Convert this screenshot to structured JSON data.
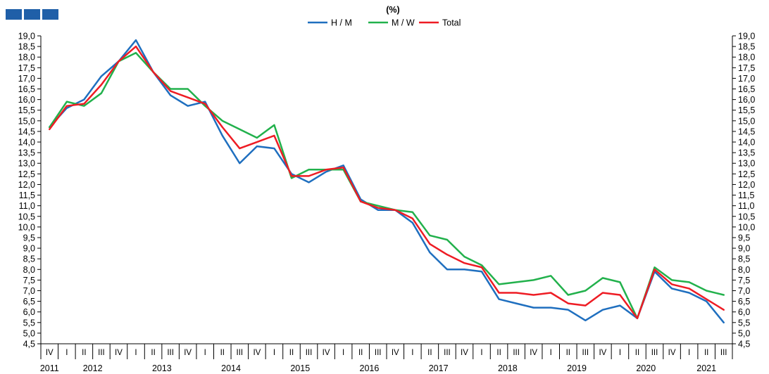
{
  "header": {
    "unit_title": "(%)"
  },
  "colors": {
    "logo": "#1f5fa8",
    "H / M": "#1f6fbf",
    "M / W": "#22b14c",
    "Total": "#ee1c24",
    "axis": "#000000"
  },
  "chart_data": {
    "type": "line",
    "title": "(%)",
    "xlabel": "",
    "ylabel": "",
    "ylim": [
      4.5,
      19.0
    ],
    "ytick_step": 0.5,
    "grid": false,
    "legend_position": "top-center",
    "y_axes": "left and right, mirrored",
    "categories": [
      "IV",
      "I",
      "II",
      "III",
      "IV",
      "I",
      "II",
      "III",
      "IV",
      "I",
      "II",
      "III",
      "IV",
      "I",
      "II",
      "III",
      "IV",
      "I",
      "II",
      "III",
      "IV",
      "I",
      "II",
      "III",
      "IV",
      "I",
      "II",
      "III",
      "IV",
      "I",
      "II",
      "III",
      "IV",
      "I",
      "II",
      "III",
      "IV",
      "I",
      "II",
      "III"
    ],
    "years": [
      {
        "label": "2011",
        "start": 0,
        "count": 1
      },
      {
        "label": "2012",
        "start": 1,
        "count": 4
      },
      {
        "label": "2013",
        "start": 5,
        "count": 4
      },
      {
        "label": "2014",
        "start": 9,
        "count": 4
      },
      {
        "label": "2015",
        "start": 13,
        "count": 4
      },
      {
        "label": "2016",
        "start": 17,
        "count": 4
      },
      {
        "label": "2017",
        "start": 21,
        "count": 4
      },
      {
        "label": "2018",
        "start": 25,
        "count": 4
      },
      {
        "label": "2019",
        "start": 29,
        "count": 4
      },
      {
        "label": "2020",
        "start": 33,
        "count": 4
      },
      {
        "label": "2021",
        "start": 37,
        "count": 3
      }
    ],
    "series": [
      {
        "name": "H / M",
        "values": [
          14.7,
          15.6,
          16.0,
          17.1,
          17.8,
          18.8,
          17.3,
          16.2,
          15.7,
          15.9,
          14.3,
          13.0,
          13.8,
          13.7,
          12.5,
          12.1,
          12.6,
          12.9,
          11.3,
          10.8,
          10.8,
          10.2,
          8.8,
          8.0,
          8.0,
          7.9,
          6.6,
          6.4,
          6.2,
          6.2,
          6.1,
          5.6,
          6.1,
          6.3,
          5.7,
          7.9,
          7.1,
          6.9,
          6.5,
          5.5
        ]
      },
      {
        "name": "M / W",
        "values": [
          14.7,
          15.9,
          15.7,
          16.3,
          17.8,
          18.2,
          17.3,
          16.5,
          16.5,
          15.7,
          15.0,
          14.6,
          14.2,
          14.8,
          12.3,
          12.7,
          12.7,
          12.7,
          11.2,
          11.0,
          10.8,
          10.7,
          9.6,
          9.4,
          8.6,
          8.2,
          7.3,
          7.4,
          7.5,
          7.7,
          6.8,
          7.0,
          7.6,
          7.4,
          5.7,
          8.1,
          7.5,
          7.4,
          7.0,
          6.8
        ]
      },
      {
        "name": "Total",
        "values": [
          14.6,
          15.7,
          15.8,
          16.7,
          17.8,
          18.5,
          17.3,
          16.4,
          16.1,
          15.8,
          14.7,
          13.7,
          14.0,
          14.3,
          12.4,
          12.4,
          12.7,
          12.8,
          11.2,
          10.9,
          10.8,
          10.4,
          9.2,
          8.7,
          8.3,
          8.1,
          6.9,
          6.9,
          6.8,
          6.9,
          6.4,
          6.3,
          6.9,
          6.8,
          5.7,
          8.0,
          7.3,
          7.1,
          6.6,
          6.1
        ]
      }
    ]
  }
}
